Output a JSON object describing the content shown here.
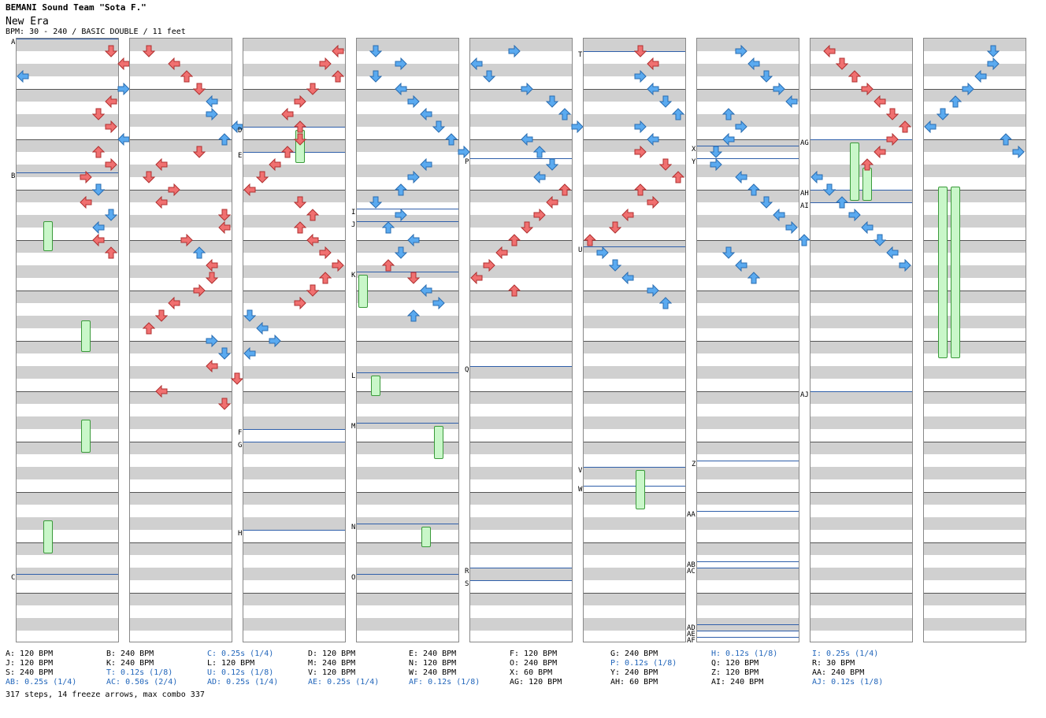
{
  "header": {
    "artist": "BEMANI Sound Team \"Sota F.\"",
    "title": "New Era",
    "meta": "BPM: 30 - 240 / BASIC DOUBLE / 11 feet"
  },
  "colors": {
    "left_arrow": "#f07070",
    "right_arrow": "#5aaaf0",
    "freeze_fill": "#c9f7c9",
    "speed_text": "#2266bb",
    "marker_line": "#2f5faa"
  },
  "chart": {
    "column_count": 9,
    "measures_per_column": 12,
    "arrow_icons": [
      "left-arrow-icon",
      "down-arrow-icon",
      "up-arrow-icon",
      "right-arrow-icon"
    ]
  },
  "markers": [
    {
      "col": 0,
      "row": 0,
      "label": "A"
    },
    {
      "col": 0,
      "row": 170,
      "label": "B"
    },
    {
      "col": 0,
      "row": 680,
      "label": "C"
    },
    {
      "col": 2,
      "row": 112,
      "label": "D"
    },
    {
      "col": 2,
      "row": 144,
      "label": "E"
    },
    {
      "col": 2,
      "row": 496,
      "label": "F"
    },
    {
      "col": 2,
      "row": 512,
      "label": "G"
    },
    {
      "col": 2,
      "row": 624,
      "label": "H"
    },
    {
      "col": 3,
      "row": 216,
      "label": "I"
    },
    {
      "col": 3,
      "row": 232,
      "label": "J"
    },
    {
      "col": 3,
      "row": 296,
      "label": "K"
    },
    {
      "col": 3,
      "row": 424,
      "label": "L"
    },
    {
      "col": 3,
      "row": 488,
      "label": "M"
    },
    {
      "col": 3,
      "row": 616,
      "label": "N"
    },
    {
      "col": 3,
      "row": 680,
      "label": "O"
    },
    {
      "col": 4,
      "row": 152,
      "label": "P"
    },
    {
      "col": 4,
      "row": 416,
      "label": "Q"
    },
    {
      "col": 4,
      "row": 672,
      "label": "R"
    },
    {
      "col": 4,
      "row": 688,
      "label": "S"
    },
    {
      "col": 5,
      "row": 16,
      "label": "T"
    },
    {
      "col": 5,
      "row": 264,
      "label": "U"
    },
    {
      "col": 5,
      "row": 544,
      "label": "V"
    },
    {
      "col": 5,
      "row": 568,
      "label": "W"
    },
    {
      "col": 6,
      "row": 136,
      "label": "X"
    },
    {
      "col": 6,
      "row": 152,
      "label": "Y"
    },
    {
      "col": 6,
      "row": 536,
      "label": "Z"
    },
    {
      "col": 6,
      "row": 600,
      "label": "AA"
    },
    {
      "col": 6,
      "row": 664,
      "label": "AB"
    },
    {
      "col": 6,
      "row": 672,
      "label": "AC"
    },
    {
      "col": 6,
      "row": 744,
      "label": "AD"
    },
    {
      "col": 6,
      "row": 752,
      "label": "AE"
    },
    {
      "col": 6,
      "row": 760,
      "label": "AF"
    },
    {
      "col": 7,
      "row": 128,
      "label": "AG"
    },
    {
      "col": 7,
      "row": 192,
      "label": "AH"
    },
    {
      "col": 7,
      "row": 208,
      "label": "AI"
    },
    {
      "col": 7,
      "row": 448,
      "label": "AJ"
    }
  ],
  "steps": [
    [
      [
        0,
        7,
        "d"
      ],
      [
        0,
        8,
        "l"
      ],
      [
        1,
        0,
        "l"
      ],
      [
        1,
        8,
        "r"
      ],
      [
        0,
        7,
        "l"
      ],
      [
        0,
        6,
        "d"
      ],
      [
        0,
        7,
        "r"
      ],
      [
        1,
        8,
        "l"
      ],
      [
        0,
        6,
        "u"
      ],
      [
        0,
        7,
        "r"
      ],
      [
        0,
        5,
        "r"
      ],
      [
        1,
        6,
        "d"
      ],
      [
        0,
        5,
        "l"
      ],
      [
        1,
        7,
        "d"
      ],
      [
        1,
        6,
        "l"
      ],
      [
        0,
        6,
        "l"
      ],
      [
        0,
        7,
        "u"
      ]
    ],
    [
      [
        0,
        1,
        "d"
      ],
      [
        0,
        3,
        "l"
      ],
      [
        0,
        4,
        "u"
      ],
      [
        0,
        5,
        "d"
      ],
      [
        1,
        6,
        "l"
      ],
      [
        1,
        6,
        "r"
      ],
      [
        1,
        8,
        "l"
      ],
      [
        1,
        7,
        "u"
      ],
      [
        0,
        5,
        "d"
      ],
      [
        0,
        2,
        "l"
      ],
      [
        0,
        1,
        "d"
      ],
      [
        0,
        3,
        "r"
      ],
      [
        0,
        2,
        "l"
      ],
      [
        0,
        7,
        "d"
      ],
      [
        0,
        7,
        "l"
      ],
      [
        0,
        4,
        "r"
      ],
      [
        1,
        5,
        "u"
      ],
      [
        0,
        6,
        "l"
      ],
      [
        0,
        6,
        "d"
      ],
      [
        0,
        5,
        "r"
      ],
      [
        0,
        3,
        "l"
      ],
      [
        0,
        2,
        "d"
      ],
      [
        0,
        1,
        "u"
      ],
      [
        1,
        6,
        "r"
      ],
      [
        1,
        7,
        "d"
      ],
      [
        0,
        6,
        "l"
      ],
      [
        0,
        8,
        "d"
      ],
      [
        0,
        2,
        "l"
      ],
      [
        0,
        7,
        "d"
      ]
    ],
    [
      [
        0,
        7,
        "l"
      ],
      [
        0,
        6,
        "r"
      ],
      [
        0,
        7,
        "u"
      ],
      [
        0,
        5,
        "d"
      ],
      [
        0,
        4,
        "r"
      ],
      [
        0,
        3,
        "l"
      ],
      [
        0,
        4,
        "u"
      ],
      [
        0,
        4,
        "d"
      ],
      [
        0,
        3,
        "u"
      ],
      [
        0,
        2,
        "l"
      ],
      [
        0,
        1,
        "d"
      ],
      [
        0,
        0,
        "l"
      ],
      [
        0,
        4,
        "d"
      ],
      [
        0,
        5,
        "u"
      ],
      [
        0,
        4,
        "u"
      ],
      [
        0,
        5,
        "l"
      ],
      [
        0,
        6,
        "r"
      ],
      [
        0,
        7,
        "r"
      ],
      [
        0,
        6,
        "u"
      ],
      [
        0,
        5,
        "d"
      ],
      [
        0,
        4,
        "r"
      ],
      [
        1,
        0,
        "d"
      ],
      [
        1,
        1,
        "l"
      ],
      [
        1,
        2,
        "r"
      ],
      [
        1,
        0,
        "l"
      ]
    ],
    [
      [
        1,
        1,
        "d"
      ],
      [
        1,
        3,
        "r"
      ],
      [
        1,
        1,
        "d"
      ],
      [
        1,
        3,
        "l"
      ],
      [
        1,
        4,
        "r"
      ],
      [
        1,
        5,
        "l"
      ],
      [
        1,
        6,
        "d"
      ],
      [
        1,
        7,
        "u"
      ],
      [
        1,
        8,
        "r"
      ],
      [
        1,
        5,
        "l"
      ],
      [
        1,
        4,
        "r"
      ],
      [
        1,
        3,
        "u"
      ],
      [
        1,
        1,
        "d"
      ],
      [
        1,
        3,
        "r"
      ],
      [
        1,
        2,
        "u"
      ],
      [
        1,
        4,
        "l"
      ],
      [
        1,
        3,
        "d"
      ],
      [
        0,
        2,
        "u"
      ],
      [
        0,
        4,
        "d"
      ],
      [
        1,
        5,
        "l"
      ],
      [
        1,
        6,
        "r"
      ],
      [
        1,
        4,
        "u"
      ]
    ],
    [
      [
        1,
        3,
        "r"
      ],
      [
        1,
        0,
        "l"
      ],
      [
        1,
        1,
        "d"
      ],
      [
        1,
        4,
        "r"
      ],
      [
        1,
        6,
        "d"
      ],
      [
        1,
        7,
        "u"
      ],
      [
        1,
        8,
        "r"
      ],
      [
        1,
        4,
        "l"
      ],
      [
        1,
        5,
        "u"
      ],
      [
        1,
        6,
        "d"
      ],
      [
        1,
        5,
        "l"
      ],
      [
        0,
        7,
        "u"
      ],
      [
        0,
        6,
        "l"
      ],
      [
        0,
        5,
        "r"
      ],
      [
        0,
        4,
        "d"
      ],
      [
        0,
        3,
        "u"
      ],
      [
        0,
        2,
        "l"
      ],
      [
        0,
        1,
        "r"
      ],
      [
        0,
        0,
        "l"
      ],
      [
        0,
        3,
        "u"
      ]
    ],
    [
      [
        0,
        4,
        "d"
      ],
      [
        0,
        5,
        "l"
      ],
      [
        1,
        4,
        "r"
      ],
      [
        1,
        5,
        "l"
      ],
      [
        1,
        6,
        "d"
      ],
      [
        1,
        7,
        "u"
      ],
      [
        1,
        4,
        "r"
      ],
      [
        1,
        5,
        "l"
      ],
      [
        0,
        4,
        "r"
      ],
      [
        0,
        6,
        "d"
      ],
      [
        0,
        7,
        "u"
      ],
      [
        0,
        4,
        "u"
      ],
      [
        0,
        5,
        "r"
      ],
      [
        0,
        3,
        "l"
      ],
      [
        0,
        2,
        "d"
      ],
      [
        0,
        0,
        "u"
      ],
      [
        1,
        1,
        "r"
      ],
      [
        1,
        2,
        "d"
      ],
      [
        1,
        3,
        "l"
      ],
      [
        1,
        5,
        "r"
      ],
      [
        1,
        6,
        "u"
      ]
    ],
    [
      [
        1,
        3,
        "r"
      ],
      [
        1,
        4,
        "l"
      ],
      [
        1,
        5,
        "d"
      ],
      [
        1,
        6,
        "r"
      ],
      [
        1,
        7,
        "l"
      ],
      [
        1,
        2,
        "u"
      ],
      [
        1,
        3,
        "r"
      ],
      [
        1,
        2,
        "l"
      ],
      [
        1,
        1,
        "d"
      ],
      [
        1,
        1,
        "r"
      ],
      [
        1,
        3,
        "l"
      ],
      [
        1,
        4,
        "u"
      ],
      [
        1,
        5,
        "d"
      ],
      [
        1,
        6,
        "l"
      ],
      [
        1,
        7,
        "r"
      ],
      [
        1,
        8,
        "u"
      ],
      [
        1,
        2,
        "d"
      ],
      [
        1,
        3,
        "l"
      ],
      [
        1,
        4,
        "u"
      ]
    ],
    [
      [
        0,
        1,
        "l"
      ],
      [
        0,
        2,
        "d"
      ],
      [
        0,
        3,
        "u"
      ],
      [
        0,
        4,
        "r"
      ],
      [
        0,
        5,
        "l"
      ],
      [
        0,
        6,
        "d"
      ],
      [
        0,
        7,
        "u"
      ],
      [
        0,
        6,
        "r"
      ],
      [
        0,
        5,
        "l"
      ],
      [
        0,
        4,
        "u"
      ],
      [
        1,
        0,
        "l"
      ],
      [
        1,
        1,
        "d"
      ],
      [
        1,
        2,
        "u"
      ],
      [
        1,
        3,
        "r"
      ],
      [
        1,
        4,
        "l"
      ],
      [
        1,
        5,
        "d"
      ],
      [
        1,
        6,
        "l"
      ],
      [
        1,
        7,
        "r"
      ]
    ],
    [
      [
        1,
        5,
        "d"
      ],
      [
        1,
        5,
        "r"
      ],
      [
        1,
        4,
        "l"
      ],
      [
        1,
        3,
        "r"
      ],
      [
        1,
        2,
        "u"
      ],
      [
        1,
        1,
        "d"
      ],
      [
        1,
        0,
        "l"
      ],
      [
        1,
        6,
        "u"
      ],
      [
        1,
        7,
        "r"
      ]
    ]
  ],
  "freezes": [
    {
      "col": 0,
      "lane": 2,
      "start": 232,
      "end": 270
    },
    {
      "col": 0,
      "lane": 5,
      "start": 358,
      "end": 398
    },
    {
      "col": 0,
      "lane": 5,
      "start": 484,
      "end": 526
    },
    {
      "col": 0,
      "lane": 2,
      "start": 612,
      "end": 654
    },
    {
      "col": 2,
      "lane": 4,
      "start": 116,
      "end": 158
    },
    {
      "col": 3,
      "lane": 0,
      "start": 300,
      "end": 342
    },
    {
      "col": 3,
      "lane": 1,
      "start": 428,
      "end": 454
    },
    {
      "col": 3,
      "lane": 6,
      "start": 492,
      "end": 534
    },
    {
      "col": 3,
      "lane": 5,
      "start": 620,
      "end": 646
    },
    {
      "col": 5,
      "lane": 4,
      "start": 548,
      "end": 598
    },
    {
      "col": 7,
      "lane": 3,
      "start": 132,
      "end": 206
    },
    {
      "col": 7,
      "lane": 4,
      "start": 164,
      "end": 206
    },
    {
      "col": 8,
      "lane": 1,
      "start": 188,
      "end": 406
    },
    {
      "col": 8,
      "lane": 2,
      "start": 188,
      "end": 406
    }
  ],
  "legend": [
    [
      {
        "t": "A: 120 BPM",
        "b": false
      },
      {
        "t": "J: 120 BPM",
        "b": false
      },
      {
        "t": "S: 240 BPM",
        "b": false
      },
      {
        "t": "AB: 0.25s (1/4)",
        "b": true
      }
    ],
    [
      {
        "t": "B: 240 BPM",
        "b": false
      },
      {
        "t": "K: 240 BPM",
        "b": false
      },
      {
        "t": "T: 0.12s (1/8)",
        "b": true
      },
      {
        "t": "AC: 0.50s (2/4)",
        "b": true
      }
    ],
    [
      {
        "t": "C: 0.25s (1/4)",
        "b": true
      },
      {
        "t": "L: 120 BPM",
        "b": false
      },
      {
        "t": "U: 0.12s (1/8)",
        "b": true
      },
      {
        "t": "AD: 0.25s (1/4)",
        "b": true
      }
    ],
    [
      {
        "t": "D: 120 BPM",
        "b": false
      },
      {
        "t": "M: 240 BPM",
        "b": false
      },
      {
        "t": "V: 120 BPM",
        "b": false
      },
      {
        "t": "AE: 0.25s (1/4)",
        "b": true
      }
    ],
    [
      {
        "t": "E: 240 BPM",
        "b": false
      },
      {
        "t": "N: 120 BPM",
        "b": false
      },
      {
        "t": "W: 240 BPM",
        "b": false
      },
      {
        "t": "AF: 0.12s (1/8)",
        "b": true
      }
    ],
    [
      {
        "t": "F: 120 BPM",
        "b": false
      },
      {
        "t": "O: 240 BPM",
        "b": false
      },
      {
        "t": "X: 60 BPM",
        "b": false
      },
      {
        "t": "AG: 120 BPM",
        "b": false
      }
    ],
    [
      {
        "t": "G: 240 BPM",
        "b": false
      },
      {
        "t": "P: 0.12s (1/8)",
        "b": true
      },
      {
        "t": "Y: 240 BPM",
        "b": false
      },
      {
        "t": "AH: 60 BPM",
        "b": false
      }
    ],
    [
      {
        "t": "H: 0.12s (1/8)",
        "b": true
      },
      {
        "t": "Q: 120 BPM",
        "b": false
      },
      {
        "t": "Z: 120 BPM",
        "b": false
      },
      {
        "t": "AI: 240 BPM",
        "b": false
      }
    ],
    [
      {
        "t": "I: 0.25s (1/4)",
        "b": true
      },
      {
        "t": "R: 30 BPM",
        "b": false
      },
      {
        "t": "AA: 240 BPM",
        "b": false
      },
      {
        "t": "AJ: 0.12s (1/8)",
        "b": true
      }
    ]
  ],
  "summary": "317 steps, 14 freeze arrows, max combo 337"
}
